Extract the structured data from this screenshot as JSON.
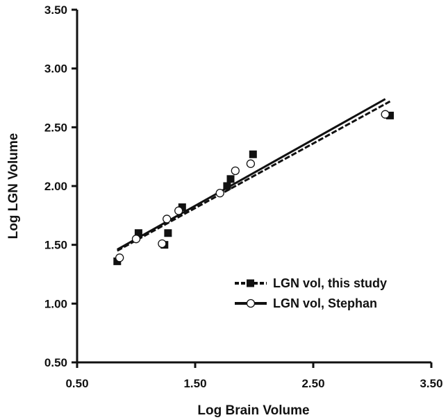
{
  "chart_data": {
    "type": "scatter",
    "xlabel": "Log Brain Volume",
    "ylabel": "Log LGN Volume",
    "xlim": [
      0.5,
      3.5
    ],
    "ylim": [
      0.5,
      3.5
    ],
    "xticks": [
      "0.50",
      "1.50",
      "2.50",
      "3.50"
    ],
    "yticks": [
      "0.50",
      "1.00",
      "1.50",
      "2.00",
      "2.50",
      "3.00",
      "3.50"
    ],
    "grid": false,
    "legend_position": "bottom-right",
    "series": [
      {
        "name": "LGN vol, this study",
        "marker": "filled-square",
        "line_style": "dashed",
        "color": "#111111",
        "points": [
          {
            "x": 0.84,
            "y": 1.36
          },
          {
            "x": 1.02,
            "y": 1.6
          },
          {
            "x": 1.24,
            "y": 1.5
          },
          {
            "x": 1.27,
            "y": 1.6
          },
          {
            "x": 1.39,
            "y": 1.82
          },
          {
            "x": 1.77,
            "y": 2.0
          },
          {
            "x": 1.8,
            "y": 2.06
          },
          {
            "x": 1.99,
            "y": 2.27
          },
          {
            "x": 3.15,
            "y": 2.6
          }
        ],
        "fit_line": {
          "x": [
            0.84,
            3.15
          ],
          "y": [
            1.45,
            2.72
          ]
        }
      },
      {
        "name": "LGN vol, Stephan",
        "marker": "open-circle",
        "line_style": "solid",
        "color": "#111111",
        "points": [
          {
            "x": 0.86,
            "y": 1.39
          },
          {
            "x": 1.0,
            "y": 1.55
          },
          {
            "x": 1.22,
            "y": 1.51
          },
          {
            "x": 1.26,
            "y": 1.72
          },
          {
            "x": 1.36,
            "y": 1.79
          },
          {
            "x": 1.71,
            "y": 1.94
          },
          {
            "x": 1.84,
            "y": 2.13
          },
          {
            "x": 1.97,
            "y": 2.19
          },
          {
            "x": 3.11,
            "y": 2.61
          }
        ],
        "fit_line": {
          "x": [
            0.84,
            3.11
          ],
          "y": [
            1.46,
            2.74
          ]
        }
      }
    ]
  }
}
